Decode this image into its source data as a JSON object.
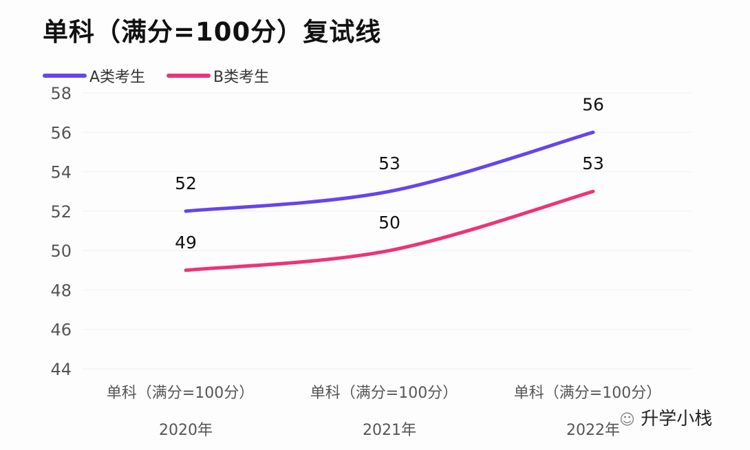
{
  "chart_data": {
    "type": "line",
    "title": "单科（满分=100分）复试线",
    "categories": [
      [
        "单科（满分=100分）",
        "2020年"
      ],
      [
        "单科（满分=100分）",
        "2021年"
      ],
      [
        "单科（满分=100分）",
        "2022年"
      ]
    ],
    "series": [
      {
        "name": "A类考生",
        "values": [
          52,
          53,
          56
        ],
        "color": "#6644ee"
      },
      {
        "name": "B类考生",
        "values": [
          49,
          50,
          53
        ],
        "color": "#ee3377"
      }
    ],
    "ylim": [
      44,
      58
    ],
    "yticks": [
      44,
      46,
      48,
      50,
      52,
      54,
      56,
      58
    ],
    "grid": true,
    "legend": "top-left",
    "smooth": true
  },
  "watermark": "升学小栈"
}
